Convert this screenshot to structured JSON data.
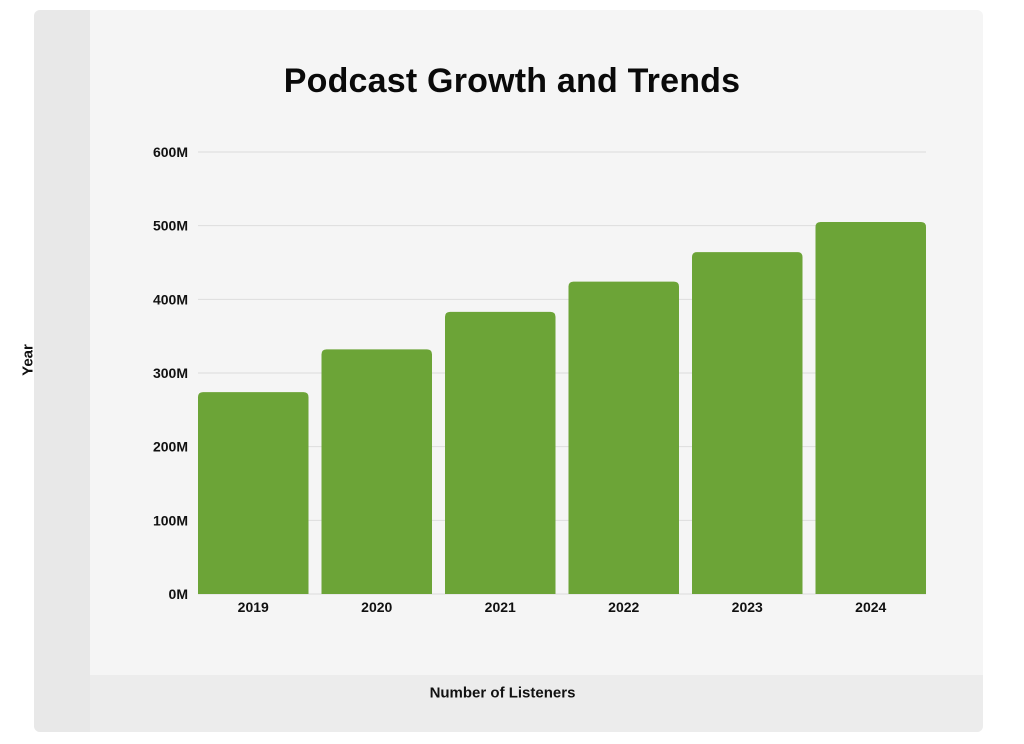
{
  "chart_data": {
    "type": "bar",
    "title": "Podcast Growth and Trends",
    "xlabel": "Number of Listeners",
    "ylabel": "Year",
    "categories": [
      "2019",
      "2020",
      "2021",
      "2022",
      "2023",
      "2024"
    ],
    "values": [
      274,
      332,
      383,
      424,
      464,
      505
    ],
    "unit": "M",
    "ylim": [
      0,
      600
    ],
    "yticks": [
      0,
      100,
      200,
      300,
      400,
      500,
      600
    ],
    "ytick_labels": [
      "0M",
      "100M",
      "200M",
      "300M",
      "400M",
      "500M",
      "600M"
    ],
    "grid": true,
    "legend": "none",
    "bar_color": "#6ca437",
    "grid_color": "#dcdcdc"
  }
}
